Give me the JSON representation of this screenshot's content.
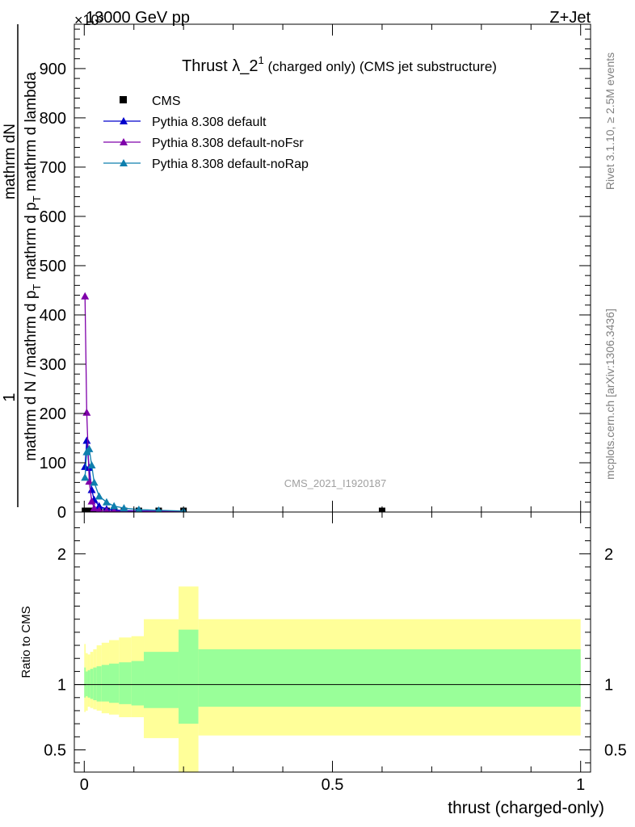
{
  "header": {
    "energy_label": "13000 GeV pp",
    "process_label": "Z+Jet",
    "multiplier_label": "×10³"
  },
  "side_labels": {
    "rivet": "Rivet 3.1.10, ≥ 2.5M events",
    "mcplots": "mcplots.cern.ch [arXiv:1306.3436]"
  },
  "title_parts": {
    "main": "Thrust λ_2",
    "sup": "1",
    "rest": " (charged only) (CMS jet substructure)"
  },
  "analysis_label": "CMS_2021_I1920187",
  "axes": {
    "ylabel_top_line": "1",
    "ylabel_main": "mathrm d N / mathrm d p",
    "ylabel_main_sub": "T",
    "ylabel_main_tail": " mathrm d p",
    "ylabel_main_tail_sub": "T",
    "ylabel_main_end": " mathrm d lambda",
    "ylabel_numerator": "mathrm dN",
    "ratio_ylabel": "Ratio to CMS",
    "xlabel": "thrust (charged-only)"
  },
  "colors": {
    "cms": "#000000",
    "default": "#0000cc",
    "noFsr": "#7f00aa",
    "noRap": "#0f7fae",
    "band_inner": "#99ff99",
    "band_outer": "#ffff99"
  },
  "chart_data": [
    {
      "type": "line",
      "panel": "main",
      "title": "Thrust λ_2^1 (charged only) (CMS jet substructure)",
      "xlabel": "thrust (charged-only)",
      "xlim": [
        -0.02,
        1.02
      ],
      "ylim": [
        0,
        990
      ],
      "y_multiplier": 1000,
      "x_ticks": [
        0,
        0.5,
        1
      ],
      "y_ticks": [
        0,
        100,
        200,
        300,
        400,
        500,
        600,
        700,
        800,
        900
      ],
      "legend": [
        "CMS",
        "Pythia 8.308 default",
        "Pythia 8.308 default-noFsr",
        "Pythia 8.308 default-noRap"
      ],
      "legend_position": "top-left",
      "series": [
        {
          "name": "CMS",
          "style": "squares",
          "x": [
            0.0015,
            0.005,
            0.01,
            0.015,
            0.02,
            0.03,
            0.045,
            0.06,
            0.08,
            0.11,
            0.15,
            0.2,
            0.6
          ],
          "y": [
            2.4,
            2.4,
            2.4,
            2.4,
            2.4,
            2.4,
            2.4,
            2.4,
            2.4,
            2.4,
            2.4,
            2.4,
            2.4
          ]
        },
        {
          "name": "Pythia 8.308 default",
          "style": "triangles",
          "x": [
            0.0015,
            0.005,
            0.01,
            0.015,
            0.02,
            0.03,
            0.045,
            0.06,
            0.08,
            0.11,
            0.15,
            0.2
          ],
          "y": [
            92,
            145,
            90,
            45,
            25,
            12,
            6,
            4,
            3,
            2.2,
            1.5,
            1
          ]
        },
        {
          "name": "Pythia 8.308 default-noFsr",
          "style": "triangles",
          "x": [
            0.0015,
            0.005,
            0.01,
            0.015,
            0.02,
            0.03,
            0.045,
            0.06,
            0.08,
            0.11,
            0.15,
            0.2
          ],
          "y": [
            438,
            202,
            62,
            22,
            8,
            3.5,
            2,
            1.6,
            1.4,
            1.2,
            1.1,
            1
          ]
        },
        {
          "name": "Pythia 8.308 default-noRap",
          "style": "triangles",
          "x": [
            0.0015,
            0.005,
            0.01,
            0.015,
            0.02,
            0.03,
            0.045,
            0.06,
            0.08,
            0.11,
            0.15,
            0.2
          ],
          "y": [
            70,
            122,
            128,
            95,
            60,
            32,
            20,
            12,
            8,
            5,
            3.5,
            2
          ]
        }
      ]
    },
    {
      "type": "area",
      "panel": "ratio",
      "ylabel": "Ratio to CMS",
      "xlabel": "thrust (charged-only)",
      "xlim": [
        -0.02,
        1.02
      ],
      "ylim": [
        0.33,
        2.32
      ],
      "y_ticks": [
        0.5,
        1,
        2
      ],
      "reference_line": 1,
      "bands": [
        {
          "x0": 0.0,
          "x1": 0.003,
          "outer": [
            0.79,
            1.31
          ],
          "inner": [
            0.9,
            1.13
          ]
        },
        {
          "x0": 0.003,
          "x1": 0.007,
          "outer": [
            0.8,
            1.24
          ],
          "inner": [
            0.91,
            1.1
          ]
        },
        {
          "x0": 0.007,
          "x1": 0.012,
          "outer": [
            0.83,
            1.23
          ],
          "inner": [
            0.9,
            1.11
          ]
        },
        {
          "x0": 0.012,
          "x1": 0.018,
          "outer": [
            0.82,
            1.25
          ],
          "inner": [
            0.89,
            1.12
          ]
        },
        {
          "x0": 0.018,
          "x1": 0.025,
          "outer": [
            0.81,
            1.27
          ],
          "inner": [
            0.88,
            1.13
          ]
        },
        {
          "x0": 0.025,
          "x1": 0.035,
          "outer": [
            0.8,
            1.3
          ],
          "inner": [
            0.87,
            1.14
          ]
        },
        {
          "x0": 0.035,
          "x1": 0.05,
          "outer": [
            0.78,
            1.32
          ],
          "inner": [
            0.87,
            1.15
          ]
        },
        {
          "x0": 0.05,
          "x1": 0.07,
          "outer": [
            0.77,
            1.34
          ],
          "inner": [
            0.86,
            1.16
          ]
        },
        {
          "x0": 0.07,
          "x1": 0.095,
          "outer": [
            0.75,
            1.36
          ],
          "inner": [
            0.85,
            1.17
          ]
        },
        {
          "x0": 0.095,
          "x1": 0.12,
          "outer": [
            0.75,
            1.37
          ],
          "inner": [
            0.84,
            1.18
          ]
        },
        {
          "x0": 0.12,
          "x1": 0.19,
          "outer": [
            0.59,
            1.5
          ],
          "inner": [
            0.82,
            1.25
          ]
        },
        {
          "x0": 0.19,
          "x1": 0.23,
          "outer": [
            0.33,
            1.75
          ],
          "inner": [
            0.7,
            1.42
          ]
        },
        {
          "x0": 0.23,
          "x1": 1.0,
          "outer": [
            0.61,
            1.5
          ],
          "inner": [
            0.83,
            1.27
          ]
        }
      ]
    }
  ]
}
